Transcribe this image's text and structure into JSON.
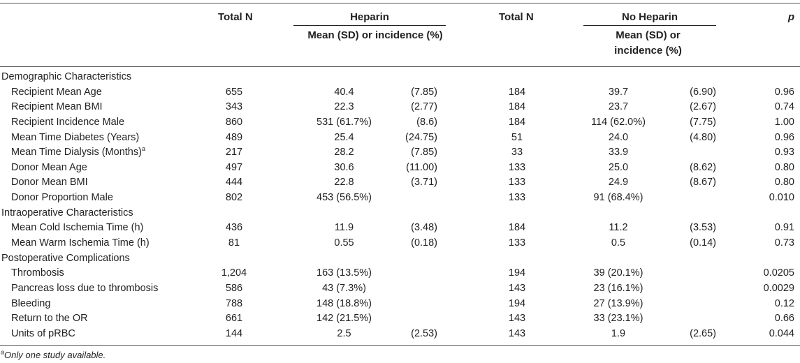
{
  "header": {
    "total_n_1": "Total N",
    "heparin": "Heparin",
    "heparin_sub": "Mean (SD) or incidence (%)",
    "total_n_2": "Total N",
    "no_heparin": "No Heparin",
    "no_heparin_sub": "Mean (SD) or incidence (%)",
    "p": "p"
  },
  "rows": [
    {
      "label": "Demographic Characteristics",
      "section": true
    },
    {
      "label": "Recipient Mean Age",
      "tn1": "655",
      "hm": "40.4",
      "hsd": "(7.85)",
      "tn2": "184",
      "nm": "39.7",
      "nsd": "(6.90)",
      "p": "0.96"
    },
    {
      "label": "Recipient Mean BMI",
      "tn1": "343",
      "hm": "22.3",
      "hsd": "(2.77)",
      "tn2": "184",
      "nm": "23.7",
      "nsd": "(2.67)",
      "p": "0.74"
    },
    {
      "label": "Recipient Incidence Male",
      "tn1": "860",
      "hm": "531 (61.7%)",
      "hsd": "(8.6)",
      "tn2": "184",
      "nm": "114 (62.0%)",
      "nsd": "(7.75)",
      "p": "1.00"
    },
    {
      "label": "Mean Time Diabetes (Years)",
      "tn1": "489",
      "hm": "25.4",
      "hsd": "(24.75)",
      "tn2": "51",
      "nm": "24.0",
      "nsd": "(4.80)",
      "p": "0.96"
    },
    {
      "label": "Mean Time Dialysis (Months)",
      "sup": "a",
      "tn1": "217",
      "hm": "28.2",
      "hsd": "(7.85)",
      "tn2": "33",
      "nm": "33.9",
      "nsd": "",
      "p": "0.93"
    },
    {
      "label": "Donor Mean Age",
      "tn1": "497",
      "hm": "30.6",
      "hsd": "(11.00)",
      "tn2": "133",
      "nm": "25.0",
      "nsd": "(8.62)",
      "p": "0.80"
    },
    {
      "label": "Donor Mean BMI",
      "tn1": "444",
      "hm": "22.8",
      "hsd": "(3.71)",
      "tn2": "133",
      "nm": "24.9",
      "nsd": "(8.67)",
      "p": "0.80"
    },
    {
      "label": "Donor Proportion Male",
      "tn1": "802",
      "hm": "453 (56.5%)",
      "hsd": "",
      "tn2": "133",
      "nm": "91 (68.4%)",
      "nsd": "",
      "p": "0.010"
    },
    {
      "label": "Intraoperative Characteristics",
      "section": true
    },
    {
      "label": "Mean Cold Ischemia Time (h)",
      "tn1": "436",
      "hm": "11.9",
      "hsd": "(3.48)",
      "tn2": "184",
      "nm": "11.2",
      "nsd": "(3.53)",
      "p": "0.91"
    },
    {
      "label": "Mean Warm Ischemia Time (h)",
      "tn1": "81",
      "hm": "0.55",
      "hsd": "(0.18)",
      "tn2": "133",
      "nm": "0.5",
      "nsd": "(0.14)",
      "p": "0.73"
    },
    {
      "label": "Postoperative Complications",
      "section": true
    },
    {
      "label": "Thrombosis",
      "tn1": "1,204",
      "hm": "163 (13.5%)",
      "hsd": "",
      "tn2": "194",
      "nm": "39 (20.1%)",
      "nsd": "",
      "p": "0.0205"
    },
    {
      "label": "Pancreas loss due to thrombosis",
      "tn1": "586",
      "hm": "43 (7.3%)",
      "hsd": "",
      "tn2": "143",
      "nm": "23 (16.1%)",
      "nsd": "",
      "p": "0.0029"
    },
    {
      "label": "Bleeding",
      "tn1": "788",
      "hm": "148 (18.8%)",
      "hsd": "",
      "tn2": "194",
      "nm": "27 (13.9%)",
      "nsd": "",
      "p": "0.12"
    },
    {
      "label": "Return to the OR",
      "tn1": "661",
      "hm": "142 (21.5%)",
      "hsd": "",
      "tn2": "143",
      "nm": "33 (23.1%)",
      "nsd": "",
      "p": "0.66"
    },
    {
      "label": "Units of pRBC",
      "tn1": "144",
      "hm": "2.5",
      "hsd": "(2.53)",
      "tn2": "143",
      "nm": "1.9",
      "nsd": "(2.65)",
      "p": "0.044"
    }
  ],
  "footnote": {
    "mark": "a",
    "text": "Only one study available."
  }
}
